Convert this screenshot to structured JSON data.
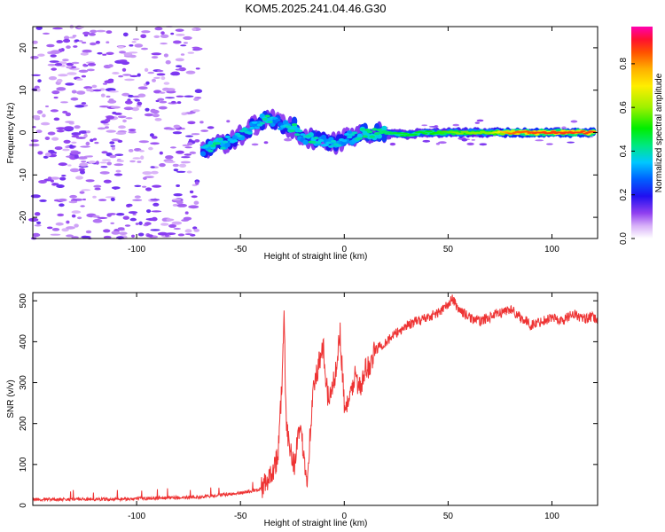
{
  "title": "KOM5.2025.241.04.46.G30",
  "chart_data": [
    {
      "type": "heatmap",
      "xlabel": "Height of straight line (km)",
      "ylabel": "Frequency (Hz)",
      "xlim": [
        -150,
        122
      ],
      "ylim": [
        -25,
        25
      ],
      "xticks": [
        -100,
        -50,
        0,
        50,
        100
      ],
      "yticks": [
        -20,
        -10,
        0,
        10,
        20
      ],
      "colorbar": {
        "label": "Normalized spectral amplitude",
        "range": [
          0.0,
          0.97
        ],
        "ticks": [
          0.0,
          0.2,
          0.4,
          0.6,
          0.8
        ]
      },
      "signal_track": [
        {
          "x": -68,
          "freq": -4,
          "amp": 0.35
        },
        {
          "x": -62,
          "freq": -3,
          "amp": 0.45
        },
        {
          "x": -55,
          "freq": -2,
          "amp": 0.35
        },
        {
          "x": -48,
          "freq": 0,
          "amp": 0.4
        },
        {
          "x": -42,
          "freq": 2,
          "amp": 0.35
        },
        {
          "x": -37,
          "freq": 3.5,
          "amp": 0.45
        },
        {
          "x": -32,
          "freq": 2.5,
          "amp": 0.3
        },
        {
          "x": -27,
          "freq": 1,
          "amp": 0.4
        },
        {
          "x": -24,
          "freq": 1.5,
          "amp": 0.45
        },
        {
          "x": -20,
          "freq": -1,
          "amp": 0.35
        },
        {
          "x": -16,
          "freq": -1.5,
          "amp": 0.45
        },
        {
          "x": -10,
          "freq": -2,
          "amp": 0.35
        },
        {
          "x": -4,
          "freq": -2.5,
          "amp": 0.4
        },
        {
          "x": 0,
          "freq": -1.5,
          "amp": 0.35
        },
        {
          "x": 5,
          "freq": -1,
          "amp": 0.4
        },
        {
          "x": 10,
          "freq": 0,
          "amp": 0.45
        },
        {
          "x": 18,
          "freq": 0,
          "amp": 0.45
        },
        {
          "x": 28,
          "freq": -0.5,
          "amp": 0.5
        },
        {
          "x": 40,
          "freq": 0,
          "amp": 0.5
        },
        {
          "x": 55,
          "freq": 0,
          "amp": 0.6
        },
        {
          "x": 70,
          "freq": 0,
          "amp": 0.6
        },
        {
          "x": 80,
          "freq": 0,
          "amp": 0.85
        },
        {
          "x": 95,
          "freq": 0,
          "amp": 0.9
        },
        {
          "x": 110,
          "freq": 0,
          "amp": 0.9
        },
        {
          "x": 120,
          "freq": 0,
          "amp": 0.9
        }
      ]
    },
    {
      "type": "line",
      "xlabel": "Height of straight line (km)",
      "ylabel": "SNR (v/v)",
      "xlim": [
        -150,
        122
      ],
      "ylim": [
        0,
        520
      ],
      "xticks": [
        -100,
        -50,
        0,
        50,
        100
      ],
      "yticks": [
        0,
        100,
        200,
        300,
        400,
        500
      ],
      "series": [
        {
          "name": "SNR",
          "color": "#ee3333",
          "x": [
            -150,
            -130,
            -110,
            -90,
            -70,
            -60,
            -50,
            -40,
            -35,
            -32,
            -30,
            -29,
            -28,
            -26,
            -24,
            -22,
            -20,
            -18,
            -15,
            -12,
            -10,
            -8,
            -5,
            -2,
            0,
            2,
            5,
            8,
            10,
            12,
            15,
            20,
            25,
            30,
            35,
            40,
            45,
            50,
            52,
            55,
            60,
            65,
            70,
            75,
            80,
            85,
            90,
            95,
            100,
            105,
            110,
            115,
            120,
            122
          ],
          "values": [
            15,
            15,
            15,
            18,
            20,
            25,
            30,
            40,
            80,
            120,
            300,
            460,
            200,
            140,
            100,
            180,
            150,
            60,
            280,
            350,
            380,
            260,
            300,
            420,
            250,
            240,
            320,
            280,
            330,
            340,
            380,
            400,
            420,
            440,
            450,
            460,
            470,
            490,
            505,
            480,
            460,
            450,
            460,
            470,
            480,
            460,
            440,
            450,
            460,
            450,
            470,
            455,
            460,
            450
          ]
        }
      ]
    }
  ]
}
